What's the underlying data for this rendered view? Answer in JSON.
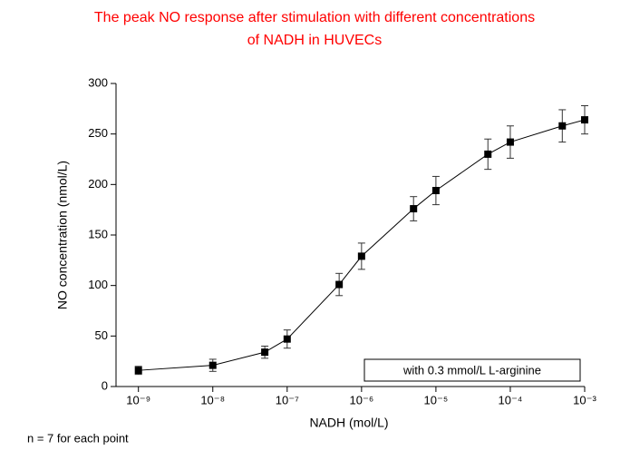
{
  "chart_data": {
    "type": "line",
    "title": [
      "The peak NO response after stimulation with different concentrations",
      "of NADH in HUVECs"
    ],
    "x_label": "NADH (mol/L)",
    "y_label": "NO concentration (nmol/L)",
    "x": [
      1e-09,
      1e-08,
      5e-08,
      1e-07,
      5e-07,
      1e-06,
      5e-06,
      1e-05,
      5e-05,
      0.0001,
      0.0005,
      0.001
    ],
    "series": [
      {
        "name": "with 0.3 mmol/L L-arginine",
        "color": "#000000",
        "values": [
          16,
          21,
          34,
          47,
          101,
          129,
          176,
          194,
          230,
          242,
          258,
          264
        ],
        "errors": [
          4,
          6,
          6,
          9,
          11,
          13,
          12,
          14,
          15,
          16,
          16,
          14
        ]
      }
    ],
    "x_log": true,
    "xlim": [
      5e-10,
      0.001
    ],
    "xticks": [
      {
        "value": 1e-09,
        "label": "10⁻⁹"
      },
      {
        "value": 1e-08,
        "label": "10⁻⁸"
      },
      {
        "value": 1e-07,
        "label": "10⁻⁷"
      },
      {
        "value": 1e-06,
        "label": "10⁻⁶"
      },
      {
        "value": 1e-05,
        "label": "10⁻⁵"
      },
      {
        "value": 0.0001,
        "label": "10⁻⁴"
      },
      {
        "value": 0.001,
        "label": "10⁻³"
      }
    ],
    "ylim": [
      0,
      300
    ],
    "yticks": [
      0,
      50,
      100,
      150,
      200,
      250,
      300
    ],
    "legend": "bottom-right",
    "footnote": "n = 7 for each point"
  }
}
